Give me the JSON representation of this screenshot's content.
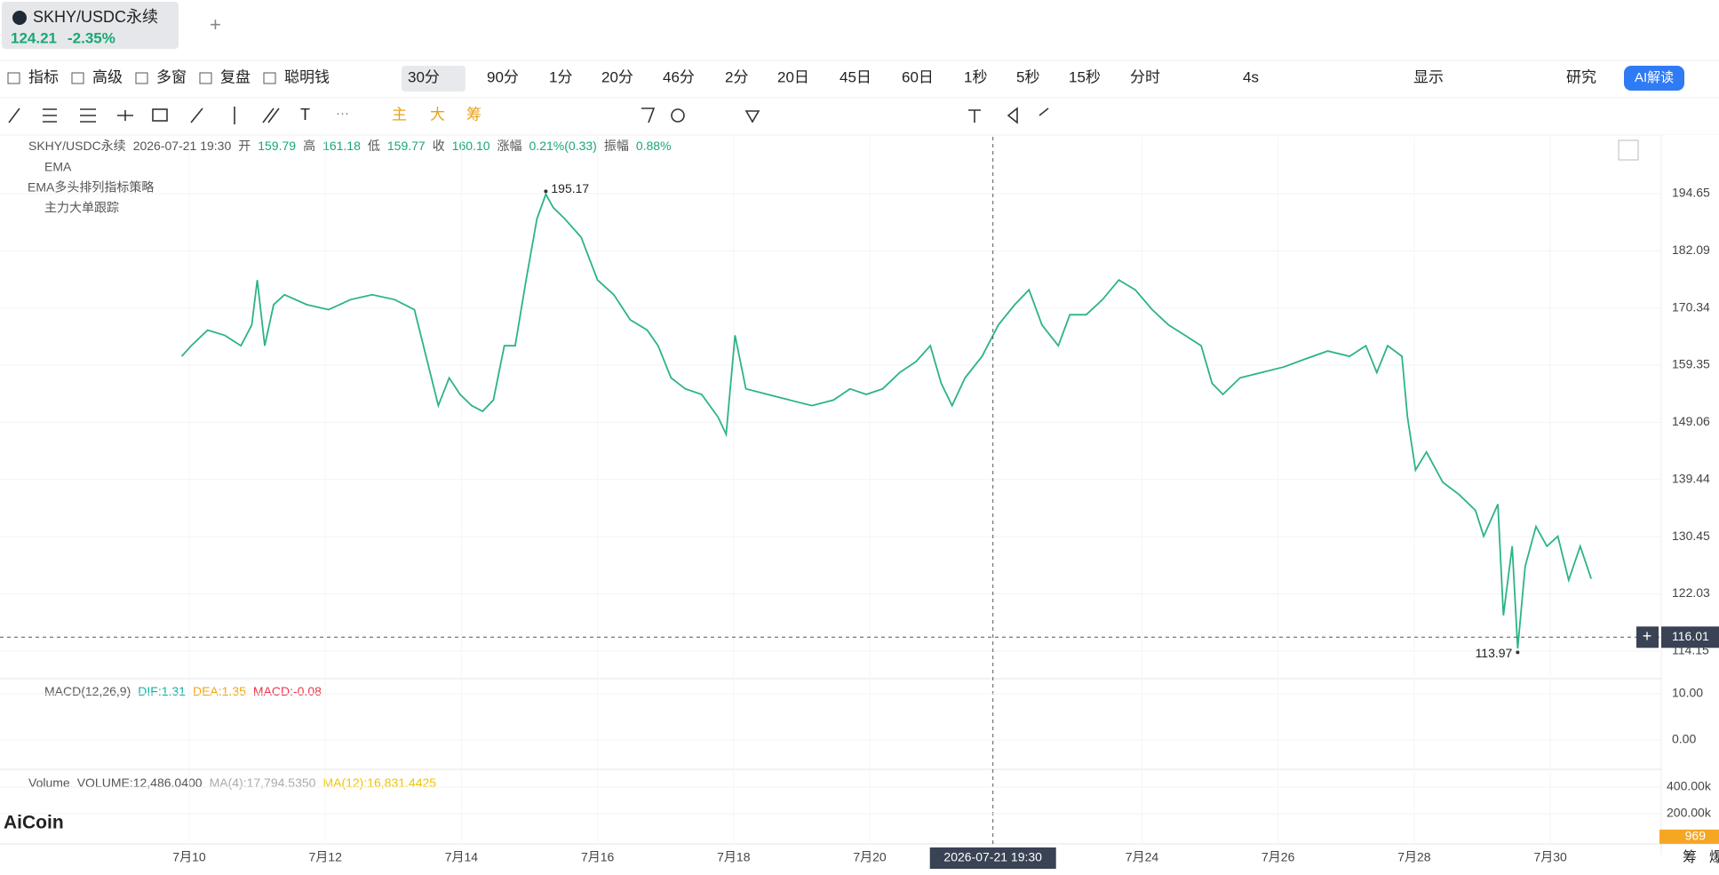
{
  "tab": {
    "symbol": "SKHY/USDC永续",
    "price": "124.21",
    "change": "-2.35%"
  },
  "toolbar": {
    "left": [
      "指标",
      "高级",
      "多窗",
      "复盘",
      "聪明钱"
    ],
    "intervals": [
      "30分",
      "90分",
      "1分",
      "20分",
      "46分",
      "2分",
      "20日",
      "45日",
      "60日",
      "1秒",
      "5秒",
      "15秒",
      "分时"
    ],
    "right": [
      "4s",
      "显示",
      "研究",
      "AI解读"
    ]
  },
  "drawing_tools": [
    "主",
    "大",
    "筹"
  ],
  "info": {
    "items": [
      "SKHY/USDC永续",
      "2026-07-21 19:30",
      "开",
      "159.79",
      "高",
      "161.18",
      "低",
      "159.77",
      "收",
      "160.10",
      "涨幅",
      "0.21%(0.33)",
      "振幅",
      "0.88%"
    ],
    "indicators": [
      "EMA",
      "EMA多头排列指标策略",
      "主力大单跟踪"
    ]
  },
  "macd": {
    "label": "MACD(12,26,9)",
    "dif": "DIF:1.31",
    "dea": "DEA:1.35",
    "macd": "MACD:-0.08",
    "ylim": [
      -5.96,
      12.5
    ],
    "yticks": [
      {
        "value": 10,
        "label": "10.00"
      },
      {
        "value": 0,
        "label": "0.00"
      }
    ]
  },
  "volume": {
    "label": "Volume",
    "volume": "VOLUME:12,486.0400",
    "ma4": "MA(4):17,794.5350",
    "ma12": "MA(12):16,831.4425",
    "ylim": [
      0,
      506667
    ],
    "yticks": [
      {
        "value": 400000,
        "label": "400.00k"
      },
      {
        "value": 200000,
        "label": "200.00k"
      }
    ],
    "current": 969
  },
  "logo": "AiCoin",
  "side_labels": [
    "筹",
    "爆"
  ],
  "chart_data": {
    "type": "line",
    "color": "#2bb38a",
    "log_scale": true,
    "grid": true,
    "xlim": [
      7.22,
      31.63
    ],
    "ylim": [
      111.1,
      208.0
    ],
    "xticks": [
      {
        "value": 10,
        "label": "7月10"
      },
      {
        "value": 12,
        "label": "7月12"
      },
      {
        "value": 14,
        "label": "7月14"
      },
      {
        "value": 16,
        "label": "7月16"
      },
      {
        "value": 18,
        "label": "7月18"
      },
      {
        "value": 20,
        "label": "7月20"
      },
      {
        "value": 24,
        "label": "7月24"
      },
      {
        "value": 26,
        "label": "7月26"
      },
      {
        "value": 28,
        "label": "7月28"
      },
      {
        "value": 30,
        "label": "7月30"
      }
    ],
    "yticks": [
      194.65,
      182.09,
      170.34,
      159.35,
      149.06,
      139.44,
      130.45,
      122.03,
      114.15
    ],
    "x": [
      9.89,
      10.03,
      10.27,
      10.52,
      10.76,
      10.92,
      11.0,
      11.11,
      11.24,
      11.4,
      11.73,
      12.05,
      12.37,
      12.69,
      13.02,
      13.31,
      13.5,
      13.66,
      13.82,
      13.98,
      14.15,
      14.31,
      14.47,
      14.63,
      14.79,
      14.95,
      15.11,
      15.24,
      15.35,
      15.52,
      15.76,
      16.0,
      16.24,
      16.48,
      16.73,
      16.89,
      17.08,
      17.29,
      17.53,
      17.77,
      17.89,
      18.02,
      18.18,
      18.5,
      18.82,
      19.15,
      19.47,
      19.71,
      19.95,
      20.19,
      20.44,
      20.68,
      20.89,
      21.05,
      21.21,
      21.4,
      21.65,
      21.89,
      22.13,
      22.34,
      22.53,
      22.77,
      22.94,
      23.18,
      23.42,
      23.66,
      23.9,
      24.15,
      24.39,
      24.63,
      24.87,
      25.03,
      25.19,
      25.44,
      25.76,
      26.08,
      26.4,
      26.73,
      27.05,
      27.29,
      27.45,
      27.61,
      27.82,
      27.9,
      28.02,
      28.18,
      28.42,
      28.66,
      28.9,
      29.02,
      29.23,
      29.31,
      29.44,
      29.52,
      29.63,
      29.79,
      29.95,
      30.11,
      30.27,
      30.44,
      30.6
    ],
    "values": [
      161,
      163,
      166,
      165,
      163,
      167,
      176,
      163,
      171,
      173,
      171,
      170,
      172,
      173,
      172,
      170,
      160,
      152,
      157,
      154,
      152,
      151,
      153,
      163,
      163,
      176,
      189,
      194.5,
      191.5,
      189,
      185,
      176,
      173,
      168,
      166,
      163,
      157,
      155,
      154,
      150,
      147,
      165,
      155,
      154,
      153,
      152,
      153,
      155,
      154,
      155,
      158,
      160,
      163,
      156,
      152,
      157,
      161,
      167,
      171,
      174,
      167,
      163,
      169,
      169,
      172,
      176,
      174,
      170,
      167,
      165,
      163,
      156,
      154,
      157,
      158,
      159,
      160.5,
      162,
      161,
      163,
      158,
      163,
      161,
      150,
      141,
      144,
      139,
      137,
      134.5,
      130.5,
      135.5,
      119,
      129,
      114.5,
      126,
      132,
      129,
      130.5,
      124,
      129,
      124.2
    ],
    "annotations": [
      {
        "x": 15.24,
        "value": 195.17
      },
      {
        "x": 29.52,
        "value": 113.97
      }
    ],
    "crosshair": {
      "x": 21.81,
      "label": "2026-07-21 19:30",
      "price": 116.01
    }
  }
}
